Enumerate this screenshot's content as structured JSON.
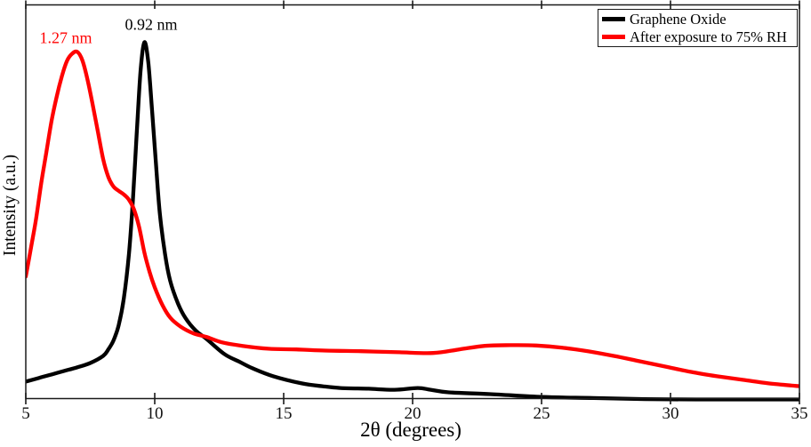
{
  "colors": {
    "background": "#ffffff",
    "axis": "#1a1a1a"
  },
  "chart_data": {
    "type": "line",
    "title": "",
    "xlabel": "2θ (degrees)",
    "ylabel": "Intensity (a.u.)",
    "xlim": [
      5,
      35
    ],
    "ylim": [
      0,
      1.05
    ],
    "x_ticks": [
      "5",
      "10",
      "15",
      "20",
      "25",
      "30",
      "35"
    ],
    "y_ticks": [],
    "grid": false,
    "legend_position": "top-right",
    "annotations": [
      {
        "text": "0.92 nm",
        "color": "#000000",
        "peak_2theta": 9.6
      },
      {
        "text": "1.27 nm",
        "color": "#ff0000",
        "peak_2theta": 7.0
      }
    ],
    "series": [
      {
        "name": "Graphene Oxide",
        "color": "#000000",
        "x": [
          5.0,
          5.5,
          6.0,
          6.5,
          7.0,
          7.5,
          8.0,
          8.2,
          8.4,
          8.6,
          8.8,
          9.0,
          9.15,
          9.3,
          9.45,
          9.6,
          9.75,
          9.9,
          10.05,
          10.2,
          10.4,
          10.6,
          10.9,
          11.2,
          11.6,
          12.0,
          12.7,
          13.3,
          13.8,
          14.6,
          15.7,
          16.5,
          17.2,
          18.3,
          19.3,
          20.2,
          20.7,
          21.4,
          23.0,
          25.0,
          27.0,
          29.0,
          31.0,
          33.0,
          35.0
        ],
        "y": [
          0.05,
          0.06,
          0.07,
          0.08,
          0.09,
          0.102,
          0.122,
          0.14,
          0.165,
          0.207,
          0.282,
          0.407,
          0.556,
          0.743,
          0.918,
          1.0,
          0.943,
          0.806,
          0.656,
          0.519,
          0.407,
          0.332,
          0.269,
          0.227,
          0.192,
          0.17,
          0.127,
          0.105,
          0.087,
          0.065,
          0.045,
          0.037,
          0.032,
          0.03,
          0.027,
          0.032,
          0.027,
          0.02,
          0.015,
          0.007,
          0.004,
          0.001,
          0.0,
          0.0,
          0.0
        ]
      },
      {
        "name": "After exposure to 75% RH",
        "color": "#ff0000",
        "x": [
          5.0,
          5.2,
          5.4,
          5.6,
          5.8,
          6.0,
          6.2,
          6.4,
          6.6,
          6.8,
          7.0,
          7.2,
          7.4,
          7.6,
          7.8,
          8.0,
          8.2,
          8.4,
          8.6,
          8.8,
          9.0,
          9.2,
          9.4,
          9.6,
          9.8,
          10.0,
          10.3,
          10.6,
          11.0,
          11.5,
          12.0,
          12.6,
          13.4,
          14.4,
          15.5,
          16.5,
          18.0,
          19.5,
          20.8,
          21.8,
          22.8,
          23.8,
          24.8,
          25.8,
          26.8,
          27.8,
          28.8,
          29.8,
          30.8,
          31.8,
          32.8,
          33.8,
          35.0
        ],
        "y": [
          0.344,
          0.424,
          0.506,
          0.606,
          0.693,
          0.78,
          0.848,
          0.905,
          0.948,
          0.968,
          0.973,
          0.948,
          0.893,
          0.823,
          0.748,
          0.673,
          0.623,
          0.596,
          0.584,
          0.574,
          0.559,
          0.531,
          0.481,
          0.411,
          0.357,
          0.314,
          0.264,
          0.229,
          0.204,
          0.185,
          0.175,
          0.16,
          0.15,
          0.142,
          0.14,
          0.137,
          0.135,
          0.132,
          0.13,
          0.14,
          0.15,
          0.152,
          0.151,
          0.145,
          0.135,
          0.122,
          0.107,
          0.092,
          0.077,
          0.065,
          0.055,
          0.045,
          0.037
        ]
      }
    ]
  }
}
